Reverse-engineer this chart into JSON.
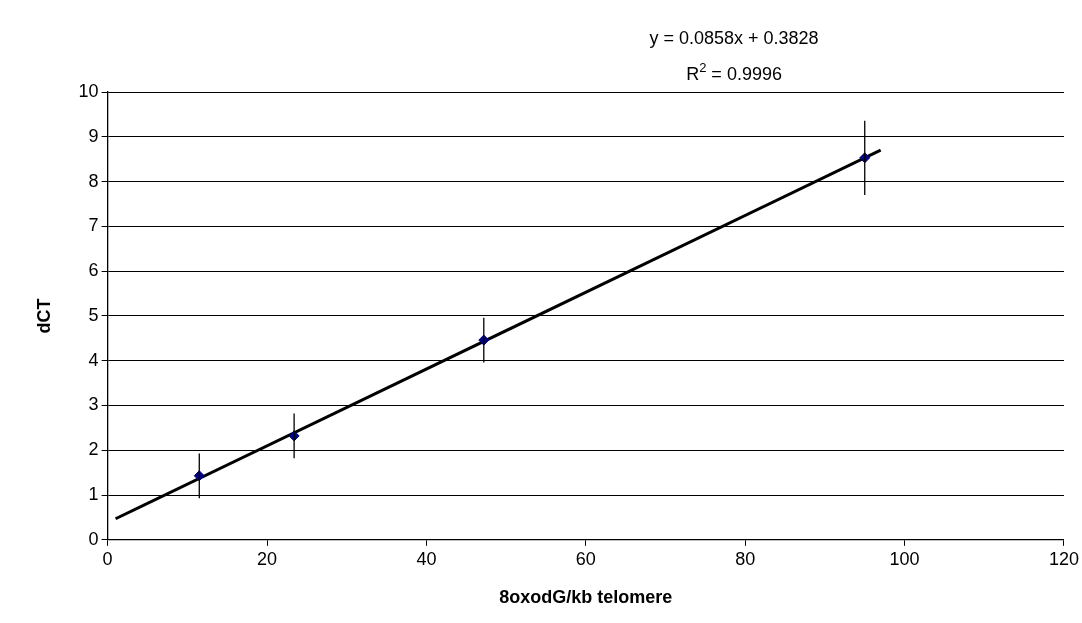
{
  "chart_data": {
    "type": "scatter",
    "xlabel": "8oxodG/kb telomere",
    "ylabel": "dCT",
    "x": [
      11.5,
      23.4,
      47.2,
      95
    ],
    "series": [
      {
        "type": "scatter",
        "color": "#000080",
        "values": [
          1.43,
          2.32,
          4.46,
          8.53
        ],
        "errors": [
          0.5,
          0.5,
          0.5,
          0.83
        ],
        "marker": "diamond"
      },
      {
        "type": "line",
        "color": "#000000",
        "x": [
          1,
          97
        ],
        "values": [
          0.47,
          8.7
        ],
        "marker": "none"
      }
    ],
    "xlim": [
      0,
      120
    ],
    "xticks": [
      0,
      20,
      40,
      60,
      80,
      100,
      120
    ],
    "ylim": [
      0,
      10
    ],
    "yticks": [
      0,
      1,
      2,
      3,
      4,
      5,
      6,
      7,
      8,
      9,
      10
    ],
    "grid": "y",
    "legend": false,
    "annotations": [
      "y = 0.0858x + 0.3828",
      "R$^{2}$ = 0.9996"
    ]
  }
}
